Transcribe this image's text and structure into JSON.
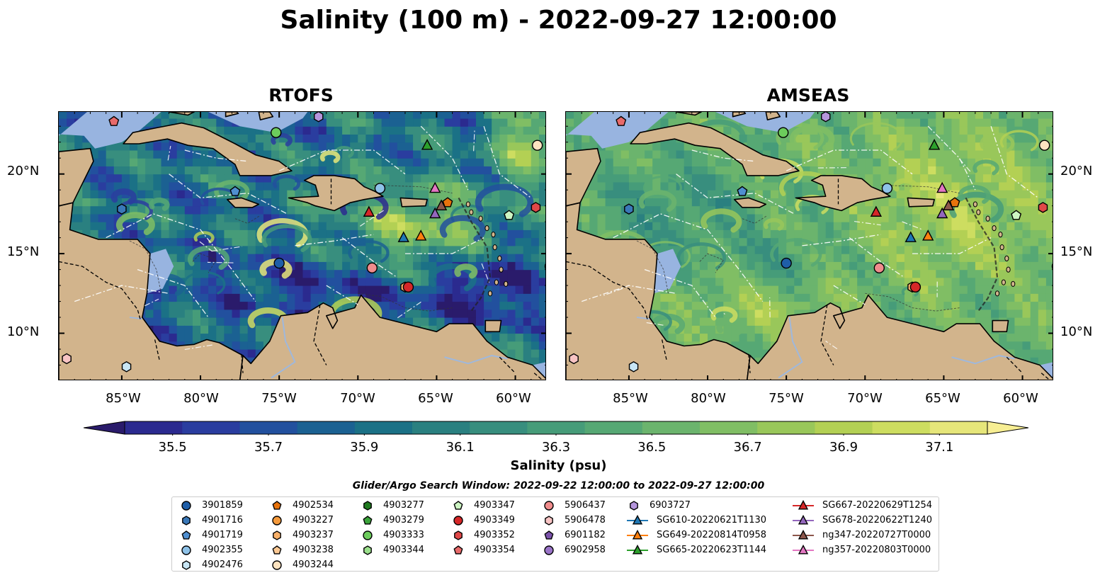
{
  "title": "Salinity (100 m) - 2022-09-27 12:00:00",
  "panels": [
    {
      "title": "RTOFS",
      "scheme": "rtofs"
    },
    {
      "title": "AMSEAS",
      "scheme": "amseas"
    }
  ],
  "lat_labels": [
    "20°N",
    "15°N",
    "10°N"
  ],
  "lon_labels": [
    "85°W",
    "80°W",
    "75°W",
    "70°W",
    "65°W",
    "60°W"
  ],
  "colorbar": {
    "label": "Salinity (psu)",
    "ticks": [
      "35.5",
      "35.7",
      "35.9",
      "36.1",
      "36.3",
      "36.5",
      "36.7",
      "36.9",
      "37.1"
    ],
    "min": 35.4,
    "max": 37.2,
    "colors": [
      "#2a1b6b",
      "#2b2a8f",
      "#2a3d9f",
      "#22509e",
      "#1b6192",
      "#1b7186",
      "#2a8080",
      "#388e7e",
      "#469c79",
      "#56a874",
      "#6bb46d",
      "#80be64",
      "#99c75a",
      "#b3d054",
      "#cddd60",
      "#e6e67a",
      "#f7ee93"
    ]
  },
  "search_window": "Glider/Argo Search Window: 2022-09-22 12:00:00 to 2022-09-27 12:00:00",
  "legend": [
    {
      "label": "3901859",
      "marker": "circle",
      "color": "#1f5ea8"
    },
    {
      "label": "4901716",
      "marker": "hexagon",
      "color": "#3a78b8"
    },
    {
      "label": "4901719",
      "marker": "pentagon",
      "color": "#4f8fd0"
    },
    {
      "label": "4902355",
      "marker": "circle",
      "color": "#8ec2e8"
    },
    {
      "label": "4902476",
      "marker": "hexagon",
      "color": "#c8e6f5"
    },
    {
      "label": "4902534",
      "marker": "pentagon",
      "color": "#e8730c"
    },
    {
      "label": "4903227",
      "marker": "circle",
      "color": "#f59a3c"
    },
    {
      "label": "4903237",
      "marker": "hexagon",
      "color": "#f9b16a"
    },
    {
      "label": "4903238",
      "marker": "pentagon",
      "color": "#fcc994"
    },
    {
      "label": "4903244",
      "marker": "circle",
      "color": "#fde3c0"
    },
    {
      "label": "4903277",
      "marker": "hexagon",
      "color": "#1f7a1f"
    },
    {
      "label": "4903279",
      "marker": "pentagon",
      "color": "#3aa33a"
    },
    {
      "label": "4903333",
      "marker": "circle",
      "color": "#6ccc5c"
    },
    {
      "label": "4903344",
      "marker": "hexagon",
      "color": "#9be08c"
    },
    {
      "label": "4903347",
      "marker": "pentagon",
      "color": "#cdf5c3"
    },
    {
      "label": "4903349",
      "marker": "circle",
      "color": "#d62728"
    },
    {
      "label": "4903352",
      "marker": "hexagon",
      "color": "#e04848"
    },
    {
      "label": "4903354",
      "marker": "pentagon",
      "color": "#e86a6a"
    },
    {
      "label": "5906437",
      "marker": "circle",
      "color": "#f08c8c"
    },
    {
      "label": "5906478",
      "marker": "hexagon",
      "color": "#f8c4c4"
    },
    {
      "label": "6901182",
      "marker": "pentagon",
      "color": "#7b52ab"
    },
    {
      "label": "6902958",
      "marker": "circle",
      "color": "#9a74c8"
    },
    {
      "label": "6903727",
      "marker": "hexagon",
      "color": "#b595dc"
    },
    {
      "label": "SG610-20220621T1130",
      "marker": "triangle-line",
      "color": "#1f77b4"
    },
    {
      "label": "SG649-20220814T0958",
      "marker": "triangle-line",
      "color": "#ff7f0e"
    },
    {
      "label": "SG665-20220623T1144",
      "marker": "triangle-line",
      "color": "#2ca02c"
    },
    {
      "label": "SG667-20220629T1254",
      "marker": "triangle-line",
      "color": "#d62728"
    },
    {
      "label": "SG678-20220622T1240",
      "marker": "triangle-line",
      "color": "#9467bd"
    },
    {
      "label": "ng347-20220727T0000",
      "marker": "triangle-line",
      "color": "#8c564b"
    },
    {
      "label": "ng357-20220803T0000",
      "marker": "triangle-line",
      "color": "#e377c2"
    }
  ],
  "observations": [
    {
      "id": "4903354",
      "lon": -85.5,
      "lat": 23.3
    },
    {
      "id": "4903333",
      "lon": -75.2,
      "lat": 22.6
    },
    {
      "id": "6903727",
      "lon": -72.5,
      "lat": 23.6
    },
    {
      "id": "SG665-20220623T1144",
      "lon": -65.6,
      "lat": 21.8
    },
    {
      "id": "4903244",
      "lon": -58.6,
      "lat": 21.8
    },
    {
      "id": "4901719",
      "lon": -77.8,
      "lat": 18.9
    },
    {
      "id": "4902355",
      "lon": -68.6,
      "lat": 19.1
    },
    {
      "id": "ng357-20220803T0000",
      "lon": -65.1,
      "lat": 19.1
    },
    {
      "id": "4901716",
      "lon": -85.0,
      "lat": 17.8
    },
    {
      "id": "SG667-20220629T1254",
      "lon": -69.3,
      "lat": 17.6
    },
    {
      "id": "4902534",
      "lon": -64.3,
      "lat": 18.2
    },
    {
      "id": "ng347-20220727T0000",
      "lon": -64.7,
      "lat": 18.0
    },
    {
      "id": "SG678-20220622T1240",
      "lon": -65.1,
      "lat": 17.5
    },
    {
      "id": "4903347",
      "lon": -60.4,
      "lat": 17.4
    },
    {
      "id": "4903352",
      "lon": -58.7,
      "lat": 17.9
    },
    {
      "id": "SG610-20220621T1130",
      "lon": -67.1,
      "lat": 16.0
    },
    {
      "id": "SG649-20220814T0958",
      "lon": -66.0,
      "lat": 16.1
    },
    {
      "id": "3901859",
      "lon": -75.0,
      "lat": 14.4
    },
    {
      "id": "5906437",
      "lon": -69.1,
      "lat": 14.1
    },
    {
      "id": "6902958",
      "lon": -57.8,
      "lat": 14.2
    },
    {
      "id": "4903237",
      "lon": -67.0,
      "lat": 12.9
    },
    {
      "id": "4903349",
      "lon": -66.8,
      "lat": 12.9
    },
    {
      "id": "5906478",
      "lon": -88.5,
      "lat": 8.4
    },
    {
      "id": "4902476",
      "lon": -84.7,
      "lat": 7.9
    }
  ]
}
